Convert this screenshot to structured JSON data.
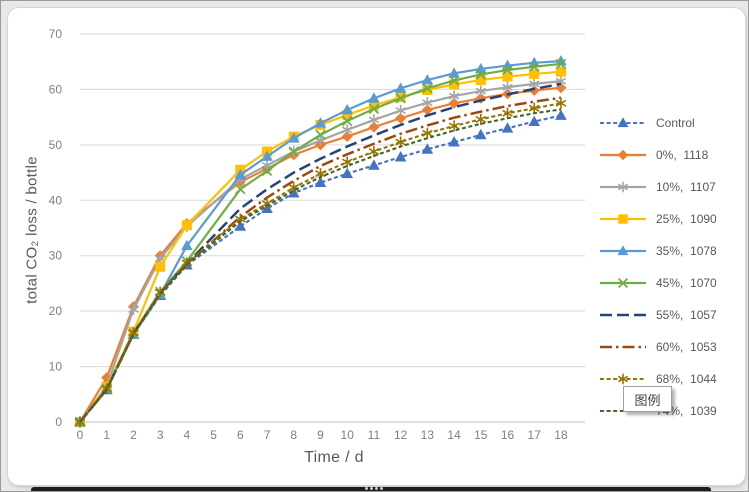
{
  "window": {
    "background_color": "#e8e8e8",
    "border_color": "#9a9a9a",
    "card_color": "#ffffff"
  },
  "tooltip": {
    "text": "图例"
  },
  "decor": {
    "bottom_bar_color": "#1c1c1c"
  },
  "chart_data": {
    "type": "line",
    "title": "",
    "xlabel": "Time / d",
    "ylabel": "total CO₂ loss / bottle",
    "xlim": [
      0,
      18
    ],
    "ylim": [
      0,
      70
    ],
    "xticks": [
      0,
      1,
      2,
      3,
      4,
      5,
      6,
      7,
      8,
      9,
      10,
      11,
      12,
      13,
      14,
      15,
      16,
      17,
      18
    ],
    "yticks": [
      0,
      10,
      20,
      30,
      40,
      50,
      60,
      70
    ],
    "grid": "horizontal",
    "legend_position": "right",
    "x": [
      0,
      1,
      2,
      3,
      4,
      6,
      7,
      8,
      9,
      10,
      11,
      12,
      13,
      14,
      15,
      16,
      17,
      18
    ],
    "note": "no measurement at day 5",
    "series": [
      {
        "name": "Control",
        "color": "#4472C4",
        "line": "dash",
        "marker": "triangle",
        "values": [
          0,
          5.8,
          15.8,
          22.8,
          28.3,
          35.3,
          38.5,
          41.3,
          43.2,
          44.8,
          46.3,
          47.8,
          49.2,
          50.5,
          51.8,
          53.0,
          54.2,
          55.3
        ]
      },
      {
        "name": "0%,  1118",
        "color": "#ED7D31",
        "line": "solid",
        "marker": "diamond",
        "values": [
          0,
          8.0,
          20.8,
          30.0,
          35.8,
          43.3,
          45.7,
          48.2,
          50.0,
          51.5,
          53.2,
          54.8,
          56.3,
          57.5,
          58.4,
          59.2,
          59.8,
          60.3
        ]
      },
      {
        "name": "10%,  1107",
        "color": "#A5A5A5",
        "line": "solid",
        "marker": "asterisk",
        "values": [
          0,
          6.5,
          20.3,
          29.5,
          35.3,
          43.8,
          46.3,
          48.8,
          50.8,
          52.7,
          54.5,
          56.2,
          57.6,
          58.8,
          59.7,
          60.4,
          61.0,
          61.5
        ]
      },
      {
        "name": "25%,  1090",
        "color": "#FFC000",
        "line": "solid",
        "marker": "square",
        "values": [
          0,
          6.3,
          16.3,
          28.0,
          35.5,
          45.5,
          48.8,
          51.5,
          53.6,
          55.4,
          57.1,
          58.6,
          59.9,
          60.9,
          61.7,
          62.3,
          62.8,
          63.2
        ]
      },
      {
        "name": "35%,  1078",
        "color": "#5B9BD5",
        "line": "solid",
        "marker": "triangle",
        "values": [
          0,
          6.0,
          15.8,
          23.0,
          31.8,
          44.6,
          47.9,
          51.2,
          53.9,
          56.3,
          58.4,
          60.2,
          61.7,
          62.9,
          63.7,
          64.3,
          64.8,
          65.1
        ]
      },
      {
        "name": "45%,  1070",
        "color": "#70AD47",
        "line": "solid",
        "marker": "x",
        "values": [
          0,
          6.0,
          16.0,
          23.5,
          29.0,
          42.0,
          45.3,
          48.8,
          51.8,
          54.3,
          56.5,
          58.4,
          60.2,
          61.6,
          62.7,
          63.5,
          64.1,
          64.6
        ]
      },
      {
        "name": "55%,  1057",
        "color": "#264478",
        "line": "longdash",
        "marker": "none",
        "values": [
          0,
          5.9,
          16.0,
          23.3,
          28.6,
          38.5,
          42.0,
          45.0,
          47.5,
          49.7,
          51.7,
          53.6,
          55.3,
          56.8,
          58.0,
          59.1,
          60.1,
          61.0
        ]
      },
      {
        "name": "60%,  1053",
        "color": "#9E480E",
        "line": "dashdot",
        "marker": "none",
        "values": [
          0,
          5.9,
          15.9,
          23.2,
          28.5,
          37.0,
          40.5,
          43.5,
          46.2,
          48.3,
          50.2,
          52.0,
          53.5,
          54.9,
          56.0,
          57.0,
          57.8,
          58.5
        ]
      },
      {
        "name": "68%,  1044",
        "color": "#997300",
        "line": "dash",
        "marker": "asterisk",
        "values": [
          0,
          6.0,
          16.1,
          23.4,
          28.7,
          36.6,
          39.4,
          42.3,
          44.8,
          46.9,
          48.8,
          50.5,
          52.1,
          53.4,
          54.6,
          55.7,
          56.6,
          57.5
        ]
      },
      {
        "name": "74%,  1039",
        "color": "#43682B",
        "line": "dash",
        "marker": "none",
        "values": [
          0,
          5.9,
          15.9,
          23.1,
          28.4,
          36.2,
          39.0,
          41.8,
          44.2,
          46.2,
          48.0,
          49.7,
          51.2,
          52.6,
          53.8,
          54.8,
          55.7,
          56.4
        ]
      }
    ]
  }
}
